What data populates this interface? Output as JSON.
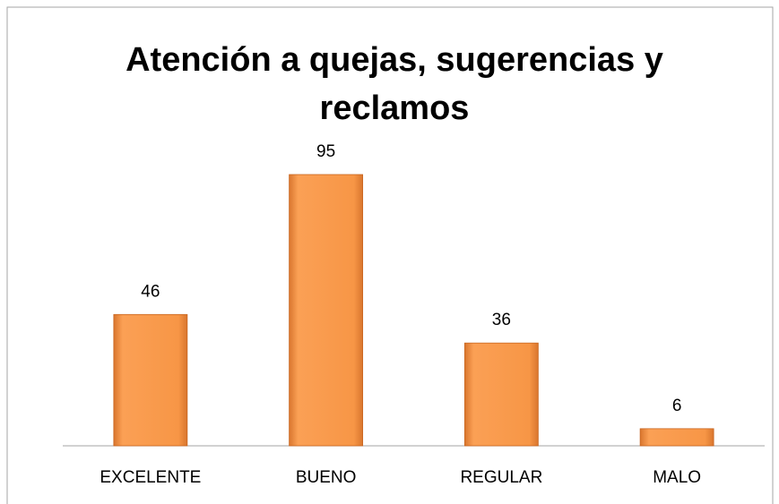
{
  "chart_data": {
    "type": "bar",
    "title": "Atención a quejas, sugerencias y reclamos",
    "categories": [
      "EXCELENTE",
      "BUENO",
      "REGULAR",
      "MALO"
    ],
    "values": [
      46,
      95,
      36,
      6
    ],
    "color": "#f79646"
  }
}
